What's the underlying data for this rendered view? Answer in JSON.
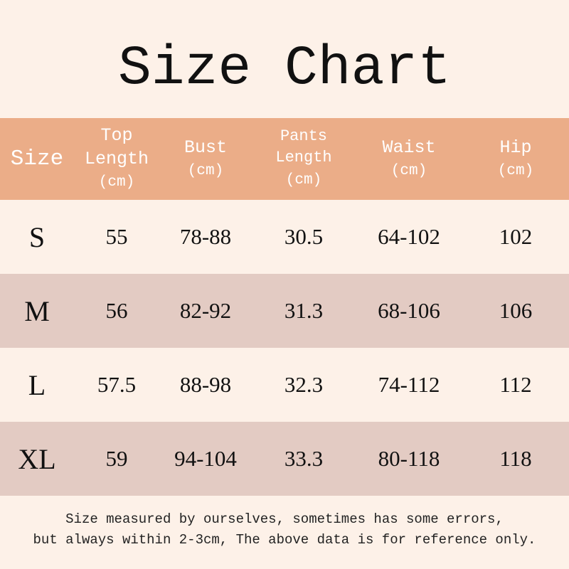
{
  "title": "Size Chart",
  "colors": {
    "header_bg": "#ebad88",
    "stripe_bg": "#e3cbc3",
    "background": "#fdf1e8"
  },
  "headers": [
    {
      "lines": [
        "Size"
      ],
      "unit": ""
    },
    {
      "lines": [
        "Top",
        "Length"
      ],
      "unit": "(cm)"
    },
    {
      "lines": [
        "Bust"
      ],
      "unit": "(cm)"
    },
    {
      "lines": [
        "Pants",
        "Length"
      ],
      "unit": "(cm)"
    },
    {
      "lines": [
        "Waist"
      ],
      "unit": "(cm)"
    },
    {
      "lines": [
        "Hip"
      ],
      "unit": "(cm)"
    }
  ],
  "rows": [
    [
      "S",
      "55",
      "78-88",
      "30.5",
      "64-102",
      "102"
    ],
    [
      "M",
      "56",
      "82-92",
      "31.3",
      "68-106",
      "106"
    ],
    [
      "L",
      "57.5",
      "88-98",
      "32.3",
      "74-112",
      "112"
    ],
    [
      "XL",
      "59",
      "94-104",
      "33.3",
      "80-118",
      "118"
    ]
  ],
  "note": [
    "Size measured by ourselves, sometimes has some errors,",
    "but always within 2-3cm, The above data is for reference only."
  ]
}
